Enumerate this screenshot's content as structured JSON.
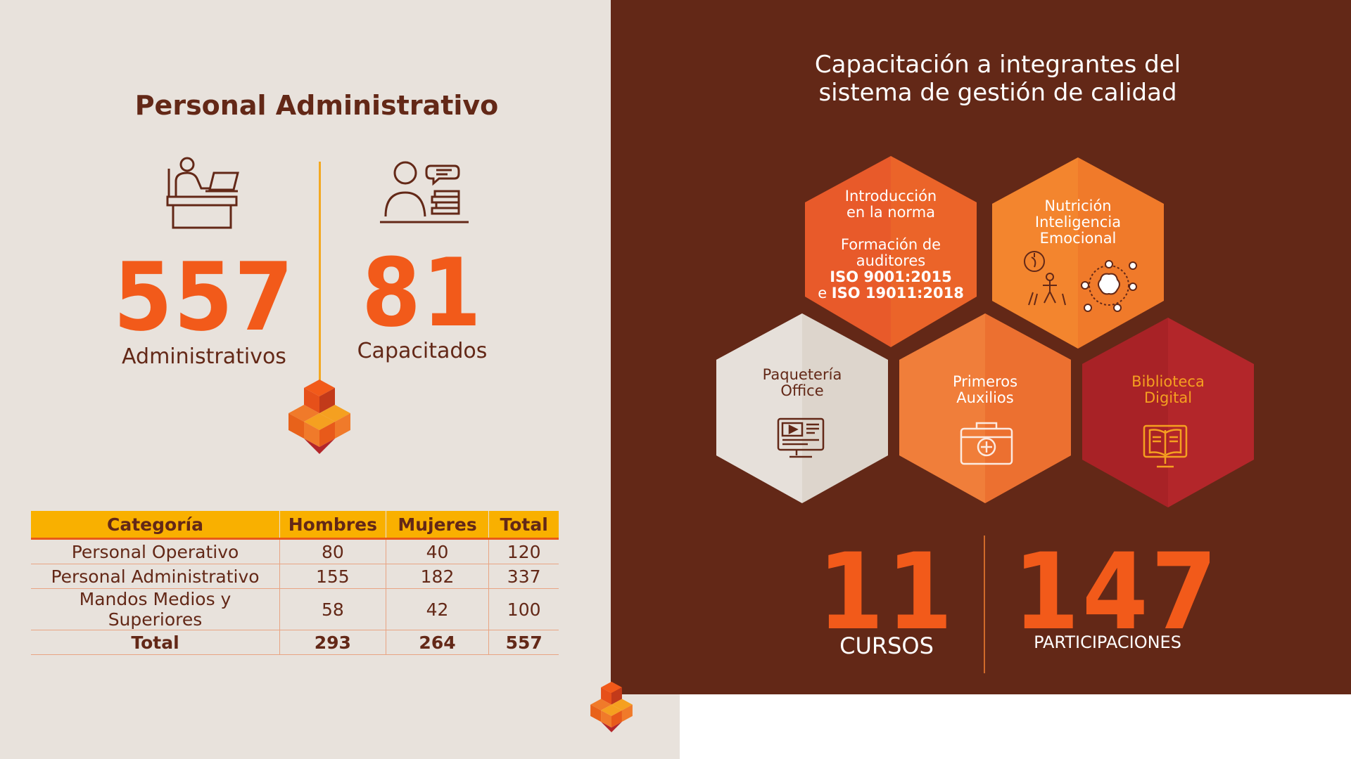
{
  "left": {
    "title": "Personal Administrativo",
    "stat1": {
      "value": "557",
      "label": "Administrativos"
    },
    "stat2": {
      "value": "81",
      "label": "Capacitados"
    },
    "table": {
      "headers": [
        "Categoría",
        "Hombres",
        "Mujeres",
        "Total"
      ],
      "rows": [
        [
          "Personal Operativo",
          "80",
          "40",
          "120"
        ],
        [
          "Personal Administrativo",
          "155",
          "182",
          "337"
        ],
        [
          "Mandos Medios y Superiores",
          "58",
          "42",
          "100"
        ]
      ],
      "total": [
        "Total",
        "293",
        "264",
        "557"
      ]
    }
  },
  "right": {
    "title_line1": "Capacitación a integrantes del",
    "title_line2": "sistema de gestión de calidad",
    "hex1": {
      "line1": "Introducción",
      "line2": "en la norma",
      "line3": "Formación de",
      "line4": "auditores",
      "line5": "ISO 9001:2015",
      "line6_prefix": "e",
      "line6": "ISO 19011:2018"
    },
    "hex2": {
      "line1": "Nutrición",
      "line2": "Inteligencia",
      "line3": "Emocional"
    },
    "hex3": {
      "line1": "Paquetería",
      "line2": "Office"
    },
    "hex4": {
      "line1": "Primeros",
      "line2": "Auxilios"
    },
    "hex5": {
      "line1": "Biblioteca",
      "line2": "Digital"
    },
    "stat1": {
      "value": "11",
      "label": "CURSOS"
    },
    "stat2": {
      "value": "147",
      "label": "PARTICIPACIONES"
    }
  },
  "colors": {
    "brown": "#632817",
    "orange": "#f25a1a",
    "yellow": "#f9b000",
    "beige": "#e8e2dc",
    "red": "#b3262a"
  },
  "icons": [
    "office-worker-icon",
    "teacher-icon",
    "cube-logo-icon",
    "nutrition-icon",
    "brain-icon",
    "computer-video-icon",
    "first-aid-kit-icon",
    "digital-book-icon"
  ]
}
